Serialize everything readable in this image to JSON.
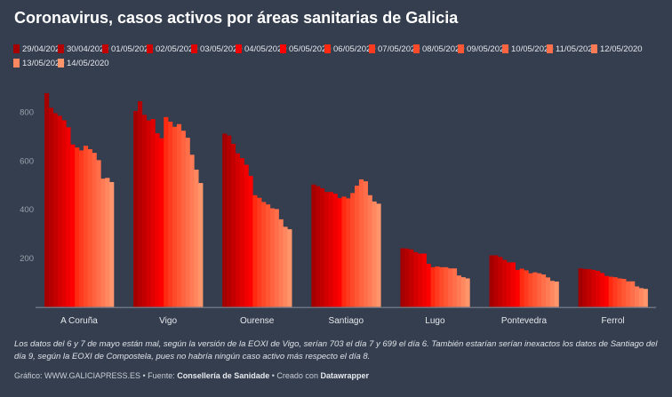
{
  "title": "Coronavirus, casos activos por áreas sanitarias de Galicia",
  "chart_data": {
    "type": "bar",
    "title": "Coronavirus, casos activos por áreas sanitarias de Galicia",
    "categories": [
      "A Coruña",
      "Vigo",
      "Ourense",
      "Santiago",
      "Lugo",
      "Pontevedra",
      "Ferrol"
    ],
    "ylim": [
      0,
      900
    ],
    "yticks": [
      200,
      400,
      600,
      800
    ],
    "grid": false,
    "legend_position": "top",
    "series": [
      {
        "name": "29/04/2020",
        "color": "#a50000",
        "values": [
          879,
          806,
          713,
          504,
          242,
          213,
          159
        ]
      },
      {
        "name": "30/04/2020",
        "color": "#b40000",
        "values": [
          819,
          846,
          705,
          497,
          241,
          213,
          157
        ]
      },
      {
        "name": "01/05/2020",
        "color": "#c30000",
        "values": [
          797,
          790,
          671,
          488,
          237,
          206,
          156
        ]
      },
      {
        "name": "02/05/2020",
        "color": "#d20000",
        "values": [
          786,
          767,
          632,
          473,
          226,
          194,
          153
        ]
      },
      {
        "name": "03/05/2020",
        "color": "#e10000",
        "values": [
          768,
          773,
          612,
          473,
          220,
          184,
          149
        ]
      },
      {
        "name": "04/05/2020",
        "color": "#f00000",
        "values": [
          739,
          714,
          585,
          466,
          220,
          184,
          140
        ]
      },
      {
        "name": "05/05/2020",
        "color": "#ff0000",
        "values": [
          668,
          694,
          539,
          448,
          178,
          153,
          128
        ]
      },
      {
        "name": "06/05/2020",
        "color": "#ff2a10",
        "values": [
          656,
          781,
          460,
          454,
          164,
          158,
          125
        ]
      },
      {
        "name": "07/05/2020",
        "color": "#ff3b1f",
        "values": [
          644,
          762,
          449,
          447,
          167,
          151,
          123
        ]
      },
      {
        "name": "08/05/2020",
        "color": "#ff4a2a",
        "values": [
          663,
          741,
          432,
          469,
          164,
          139,
          118
        ]
      },
      {
        "name": "09/05/2020",
        "color": "#ff5733",
        "values": [
          649,
          752,
          422,
          499,
          164,
          143,
          116
        ]
      },
      {
        "name": "10/05/2020",
        "color": "#ff6340",
        "values": [
          634,
          725,
          406,
          525,
          159,
          139,
          106
        ]
      },
      {
        "name": "11/05/2020",
        "color": "#ff6f4a",
        "values": [
          604,
          696,
          403,
          517,
          159,
          134,
          106
        ]
      },
      {
        "name": "12/05/2020",
        "color": "#ff7b55",
        "values": [
          528,
          626,
          361,
          460,
          130,
          122,
          85
        ]
      },
      {
        "name": "13/05/2020",
        "color": "#ff8860",
        "values": [
          531,
          565,
          330,
          434,
          123,
          108,
          78
        ]
      },
      {
        "name": "14/05/2020",
        "color": "#ff956b",
        "values": [
          514,
          510,
          320,
          425,
          118,
          105,
          75
        ]
      }
    ]
  },
  "note": "Los datos del 6 y 7 de mayo están mal, según la versión de la EOXI de Vigo, serían 703 el día 7 y 699 el día 6. También estarían serían inexactos los datos de Santiago del día 9, según la EOXI de Compostela, pues no habría ningún caso activo más respecto el día 8.",
  "credit": {
    "chart_label": "Gráfico: WWW.GALICIAPRESS.ES",
    "sep1": " • Fuente: ",
    "source": "Consellería de Sanidade",
    "sep2": " • Creado con ",
    "tool": "Datawrapper"
  },
  "colors": {
    "background": "#343e4f",
    "axis": "#6b7380",
    "tick_text": "#9aa1ab"
  }
}
